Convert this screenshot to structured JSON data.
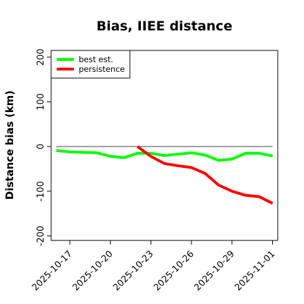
{
  "chart_data": {
    "type": "line",
    "title": "Bias, IIEE distance",
    "xlabel": "",
    "ylabel": "Distance bias (km)",
    "x": [
      "2025-10-16",
      "2025-10-17",
      "2025-10-18",
      "2025-10-19",
      "2025-10-20",
      "2025-10-21",
      "2025-10-22",
      "2025-10-23",
      "2025-10-24",
      "2025-10-25",
      "2025-10-26",
      "2025-10-27",
      "2025-10-28",
      "2025-10-29",
      "2025-10-30",
      "2025-10-31",
      "2025-11-01"
    ],
    "xticks": [
      "2025-10-17",
      "2025-10-20",
      "2025-10-23",
      "2025-10-26",
      "2025-10-29",
      "2025-11-01"
    ],
    "ylim": [
      -210,
      215
    ],
    "yticks": [
      -200,
      -100,
      0,
      100,
      200
    ],
    "reference_line": 0,
    "series": [
      {
        "name": "best est.",
        "color": "#00ff00",
        "x": [
          "2025-10-16",
          "2025-10-17",
          "2025-10-18",
          "2025-10-19",
          "2025-10-20",
          "2025-10-21",
          "2025-10-22",
          "2025-10-23",
          "2025-10-24",
          "2025-10-25",
          "2025-10-26",
          "2025-10-27",
          "2025-10-28",
          "2025-10-29",
          "2025-10-30",
          "2025-10-31",
          "2025-11-01"
        ],
        "values": [
          -9,
          -12,
          -13,
          -14,
          -22,
          -25,
          -15,
          -15,
          -20,
          -17,
          -14,
          -19,
          -31,
          -28,
          -15,
          -15,
          -21
        ]
      },
      {
        "name": "persistence",
        "color": "#ff0000",
        "x": [
          "2025-10-22",
          "2025-10-23",
          "2025-10-24",
          "2025-10-25",
          "2025-10-26",
          "2025-10-27",
          "2025-10-28",
          "2025-10-29",
          "2025-10-30",
          "2025-10-31",
          "2025-11-01"
        ],
        "values": [
          0,
          -22,
          -38,
          -43,
          -47,
          -60,
          -86,
          -100,
          -109,
          -112,
          -127
        ]
      }
    ],
    "legend_position": "top-left",
    "reference_color": "#808080",
    "grid": false
  }
}
